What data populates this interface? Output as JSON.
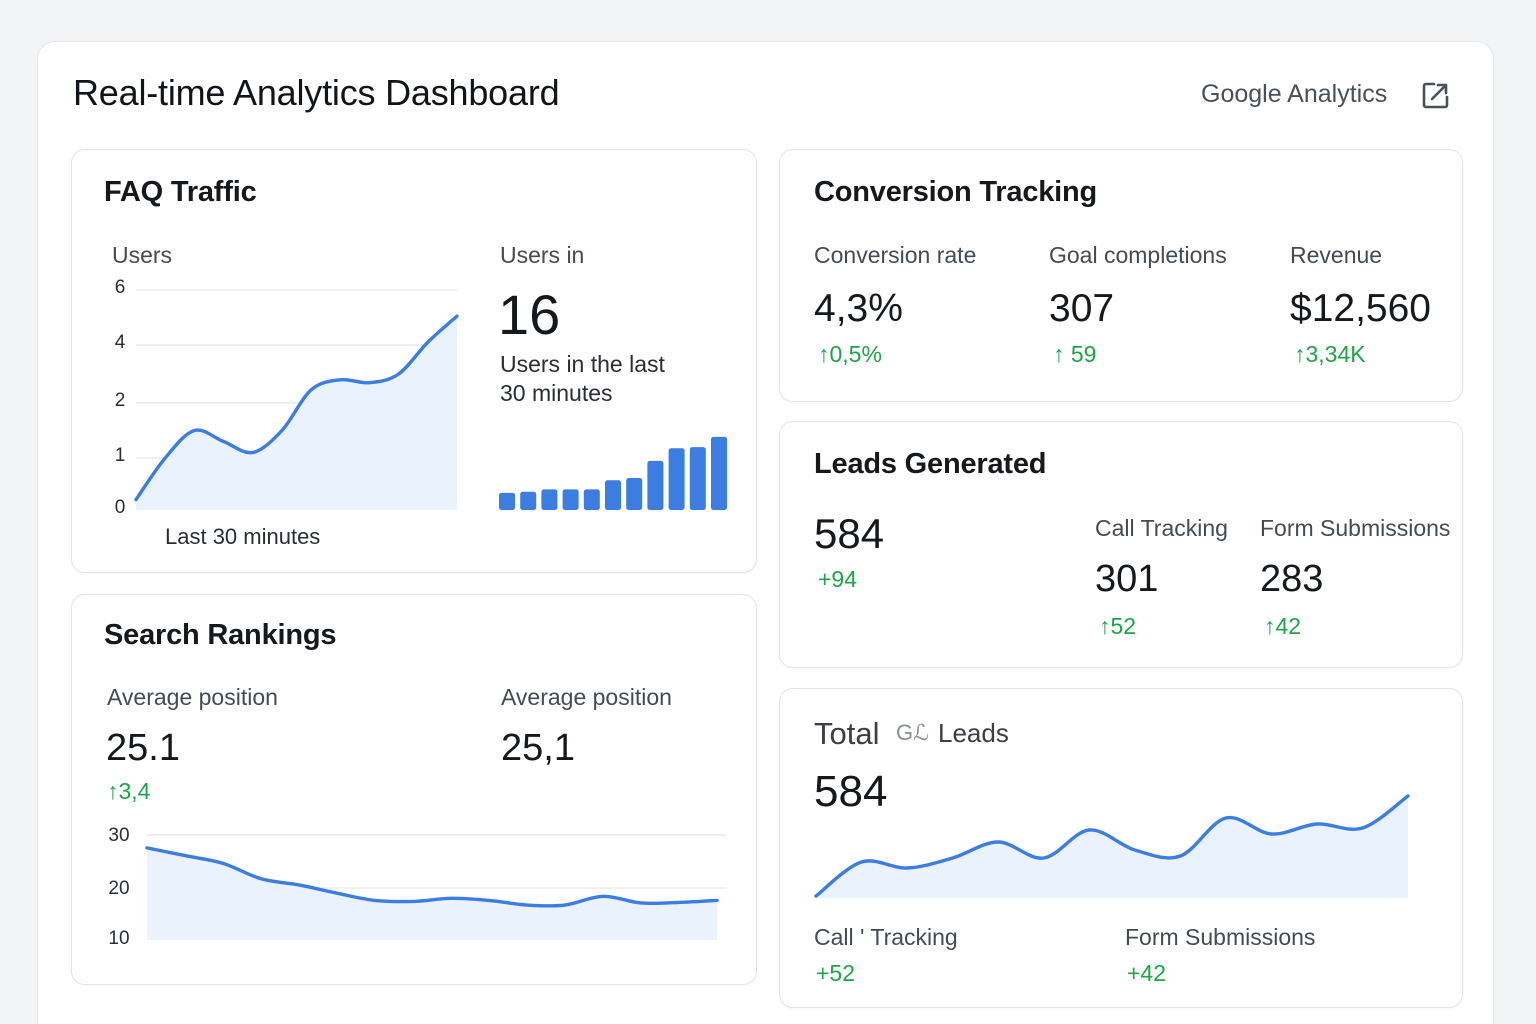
{
  "header": {
    "title": "Real-time Analytics Dashboard",
    "source_link": "Google Analytics",
    "source_icon": "external-link-icon"
  },
  "colors": {
    "accent": "#3b7de0",
    "area_fill": "#eaf2fd",
    "positive": "#1ea548"
  },
  "faq_traffic": {
    "title": "FAQ Traffic",
    "chart_label": "Users",
    "x_caption": "Last 30 minutes",
    "side_label": "Users in",
    "users_now": "16",
    "users_caption_1": "Users in the last",
    "users_caption_2": "30 minutes"
  },
  "conversion": {
    "title": "Conversion Tracking",
    "metrics": [
      {
        "label": "Conversion rate",
        "value": "4,3%",
        "delta": "0,5%"
      },
      {
        "label": "Goal completions",
        "value": "307",
        "delta": "59"
      },
      {
        "label": "Revenue",
        "value": "$12,560",
        "delta": "3,34K"
      }
    ]
  },
  "leads": {
    "title": "Leads Generated",
    "total": "584",
    "total_delta": "+94",
    "call": {
      "label": "Call Tracking",
      "value": "301",
      "delta": "52"
    },
    "form": {
      "label": "Form Submissions",
      "value": "283",
      "delta": "42"
    }
  },
  "search": {
    "title": "Search Rankings",
    "left_label": "Average position",
    "left_value": "25.1",
    "left_delta": "3,4",
    "right_label": "Average position",
    "right_value": "25,1"
  },
  "total_leads": {
    "title": "Total",
    "badge": "Gℒ",
    "subtitle": "Leads",
    "value": "584",
    "call_label": "Call ' Tracking",
    "call_delta": "+52",
    "form_label": "Form Submissions",
    "form_delta": "+42"
  },
  "chart_data": [
    {
      "type": "area",
      "name": "faq-users",
      "y_ticks": [
        "6",
        "4",
        "2",
        "1",
        "0"
      ],
      "ylim": [
        0,
        6
      ],
      "values": [
        0.2,
        1.0,
        1.5,
        1.3,
        1.1,
        1.5,
        2.45,
        2.8,
        2.7,
        3.0,
        4.1,
        5.05
      ],
      "grid": true
    },
    {
      "type": "bar",
      "name": "users-per-minute",
      "values": [
        1.5,
        1.6,
        1.8,
        1.8,
        1.8,
        2.6,
        2.8,
        4.3,
        5.4,
        5.5,
        6.4
      ],
      "ylim": [
        0,
        7
      ]
    },
    {
      "type": "area",
      "name": "average-position",
      "y_ticks": [
        "30",
        "20",
        "10"
      ],
      "ylim": [
        10,
        30
      ],
      "values": [
        27.5,
        26.0,
        24.5,
        21.5,
        20.3,
        18.7,
        17.3,
        17.1,
        17.7,
        17.3,
        16.4,
        16.4,
        18.1,
        16.8,
        16.9,
        17.3
      ],
      "grid": true
    },
    {
      "type": "area",
      "name": "total-leads",
      "values": [
        0,
        34,
        28,
        38,
        54,
        38,
        66,
        46,
        40,
        78,
        62,
        72,
        68,
        100
      ],
      "ylim": [
        0,
        100
      ],
      "grid": false
    }
  ]
}
